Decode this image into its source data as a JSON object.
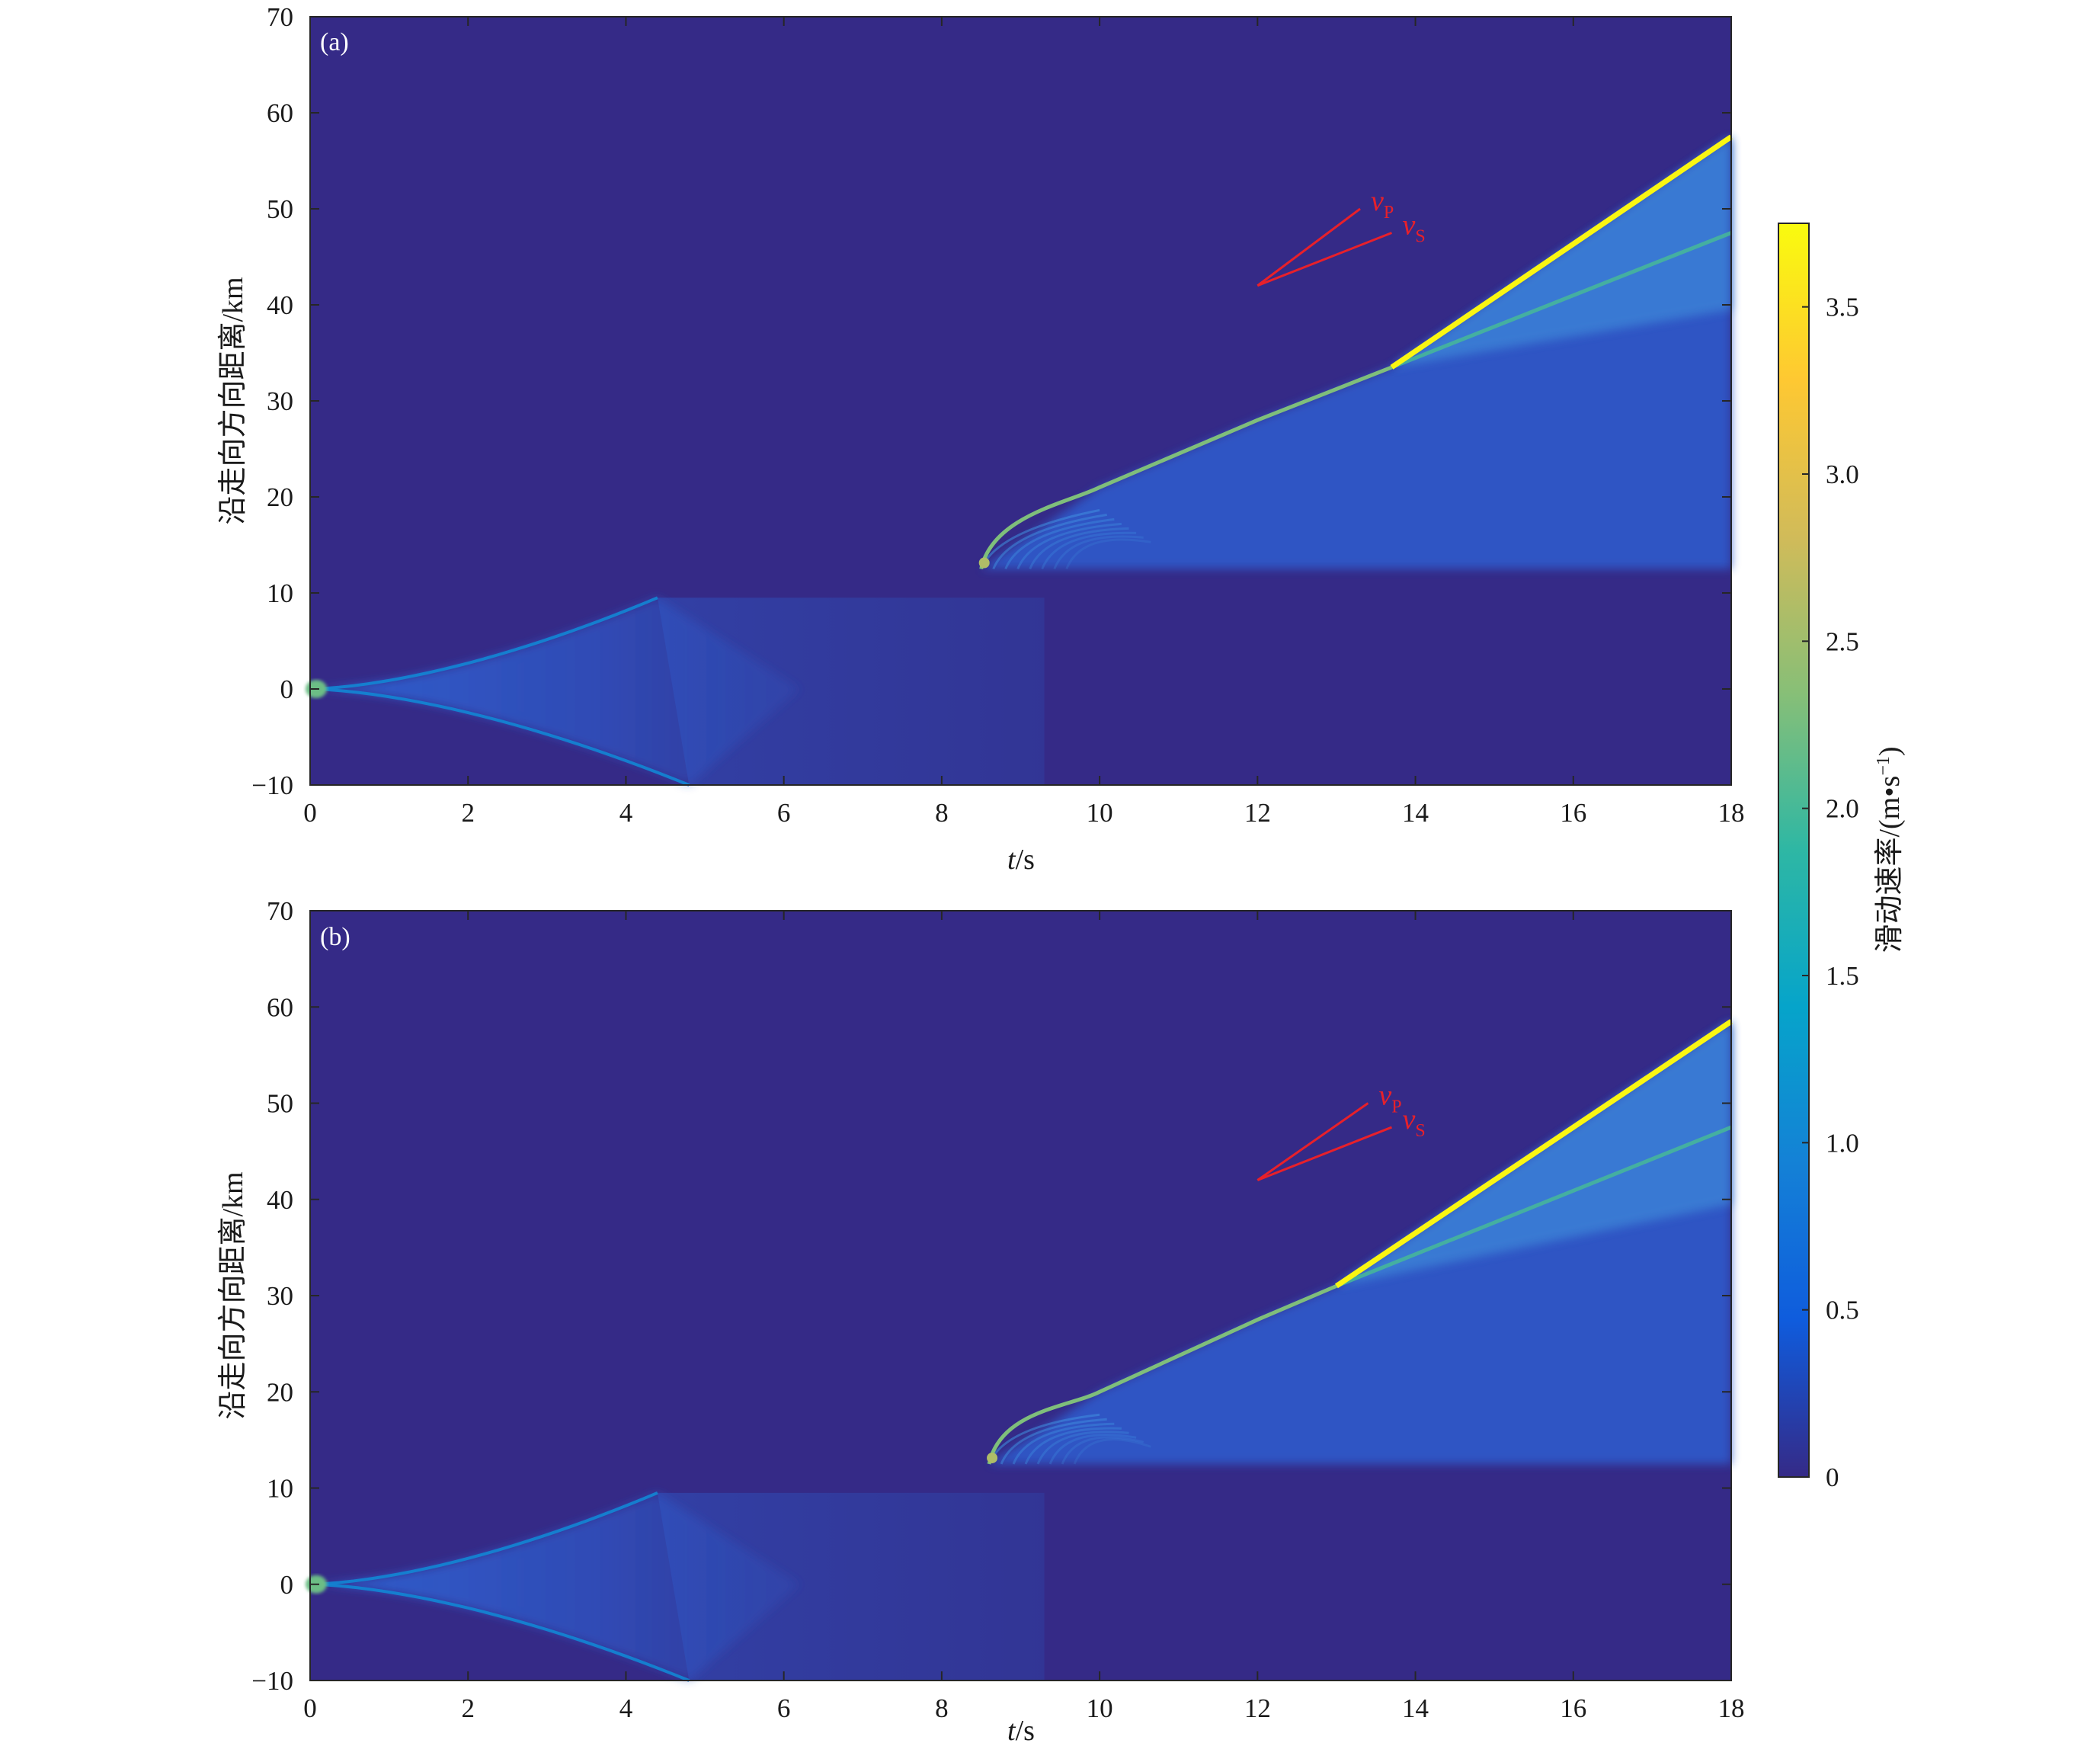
{
  "chart_data": [
    {
      "type": "heatmap",
      "panel_label": "(a)",
      "xlabel_italic": "t",
      "xlabel_unit": "/s",
      "ylabel": "沿走向方向距离/km",
      "xlim": [
        0,
        18
      ],
      "ylim": [
        -10,
        70
      ],
      "xticks": [
        "0",
        "2",
        "4",
        "6",
        "8",
        "10",
        "12",
        "14",
        "16",
        "18"
      ],
      "yticks": [
        "−10",
        "0",
        "10",
        "20",
        "30",
        "40",
        "50",
        "60",
        "70"
      ],
      "fault_segments": [
        {
          "y_range": [
            -10,
            9.5
          ],
          "nucleation_t": 0,
          "nucleation_y": 0,
          "bilateral_front_end_t": 4.4,
          "front_top_y": 9.5,
          "front_bottom_y": -10,
          "peak_slip_rate": 1.0
        },
        {
          "y_range": [
            12.5,
            70
          ],
          "start_t": 8.5,
          "start_y": 12.5,
          "subshear_front": [
            [
              8.5,
              12.5
            ],
            [
              10,
              21
            ],
            [
              12,
              28
            ],
            [
              13.7,
              33.5
            ]
          ],
          "transition_t": 13.7,
          "transition_y": 33.5,
          "supershear_front": [
            [
              13.7,
              33.5
            ],
            [
              18,
              57.5
            ]
          ],
          "s_wave_branch": [
            [
              13.7,
              33.5
            ],
            [
              18,
              47.5
            ]
          ],
          "peak_slip_rate": 3.7
        }
      ],
      "annotations": [
        {
          "label": "v",
          "sub": "P",
          "line": [
            [
              12,
              42
            ],
            [
              13.3,
              50
            ]
          ]
        },
        {
          "label": "v",
          "sub": "S",
          "line": [
            [
              12,
              42
            ],
            [
              13.7,
              47.5
            ]
          ]
        }
      ]
    },
    {
      "type": "heatmap",
      "panel_label": "(b)",
      "xlabel_italic": "t",
      "xlabel_unit": "/s",
      "ylabel": "沿走向方向距离/km",
      "xlim": [
        0,
        18
      ],
      "ylim": [
        -10,
        70
      ],
      "xticks": [
        "0",
        "2",
        "4",
        "6",
        "8",
        "10",
        "12",
        "14",
        "16",
        "18"
      ],
      "yticks": [
        "−10",
        "0",
        "10",
        "20",
        "30",
        "40",
        "50",
        "60",
        "70"
      ],
      "fault_segments": [
        {
          "y_range": [
            -10,
            9.5
          ],
          "nucleation_t": 0,
          "nucleation_y": 0,
          "bilateral_front_end_t": 4.4,
          "front_top_y": 9.5,
          "front_bottom_y": -10,
          "peak_slip_rate": 1.0
        },
        {
          "y_range": [
            12.5,
            70
          ],
          "start_t": 8.6,
          "start_y": 12.5,
          "subshear_front": [
            [
              8.6,
              12.5
            ],
            [
              10,
              20
            ],
            [
              12,
              27.5
            ],
            [
              13,
              31
            ]
          ],
          "transition_t": 13.0,
          "transition_y": 31,
          "supershear_front": [
            [
              13,
              31
            ],
            [
              18,
              58.5
            ]
          ],
          "s_wave_branch": [
            [
              13,
              31
            ],
            [
              18,
              47.5
            ]
          ],
          "peak_slip_rate": 3.7
        }
      ],
      "annotations": [
        {
          "label": "v",
          "sub": "P",
          "line": [
            [
              12,
              42
            ],
            [
              13.4,
              50
            ]
          ]
        },
        {
          "label": "v",
          "sub": "S",
          "line": [
            [
              12,
              42
            ],
            [
              13.7,
              47.5
            ]
          ]
        }
      ]
    }
  ],
  "colorbar": {
    "label": "滑动速率/(m•s",
    "label_sup": "−1",
    "label_close": ")",
    "range": [
      0,
      3.75
    ],
    "ticks": [
      "0",
      "0.5",
      "1.0",
      "1.5",
      "2.0",
      "2.5",
      "3.0",
      "3.5"
    ],
    "tick_values": [
      0,
      0.5,
      1.0,
      1.5,
      2.0,
      2.5,
      3.0,
      3.5
    ],
    "colormap": "parula",
    "stops": [
      "#352a87",
      "#0f5cdd",
      "#1481d6",
      "#06a4ca",
      "#2eb7a4",
      "#87bf77",
      "#d1bb59",
      "#fec832",
      "#f9fb0e"
    ]
  },
  "colors": {
    "background": "#352a87",
    "annotation": "#e8202a"
  }
}
